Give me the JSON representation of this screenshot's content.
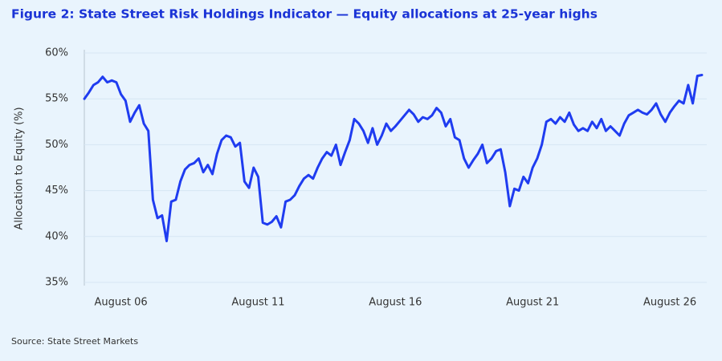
{
  "chart_data": {
    "type": "line",
    "title": "Figure 2: State Street Risk Holdings Indicator — Equity allocations at 25-year highs",
    "ylabel": "Allocation to Equity (%)",
    "source": "Source: State Street Markets",
    "categories": [
      null,
      null,
      null,
      null,
      null,
      null,
      null,
      null,
      "August 06",
      null,
      null,
      null,
      null,
      null,
      null,
      null,
      null,
      null,
      null,
      null,
      null,
      null,
      null,
      null,
      null,
      null,
      null,
      null,
      null,
      null,
      null,
      null,
      null,
      null,
      null,
      null,
      null,
      null,
      "August 11",
      null,
      null,
      null,
      null,
      null,
      null,
      null,
      null,
      null,
      null,
      null,
      null,
      null,
      null,
      null,
      null,
      null,
      null,
      null,
      null,
      null,
      null,
      null,
      null,
      null,
      null,
      null,
      null,
      null,
      "August 16",
      null,
      null,
      null,
      null,
      null,
      null,
      null,
      null,
      null,
      null,
      null,
      null,
      null,
      null,
      null,
      null,
      null,
      null,
      null,
      null,
      null,
      null,
      null,
      null,
      null,
      null,
      null,
      null,
      null,
      "August 21",
      null,
      null,
      null,
      null,
      null,
      null,
      null,
      null,
      null,
      null,
      null,
      null,
      null,
      null,
      null,
      null,
      null,
      null,
      null,
      null,
      null,
      null,
      null,
      null,
      null,
      null,
      null,
      null,
      null,
      "August 26",
      null,
      null,
      null,
      null,
      null,
      null,
      null
    ],
    "values": [
      55.0,
      55.7,
      56.5,
      56.8,
      57.4,
      56.8,
      57.0,
      56.8,
      55.5,
      54.8,
      52.5,
      53.5,
      54.3,
      52.3,
      51.5,
      44.0,
      42.0,
      42.3,
      39.5,
      43.8,
      44.0,
      46.0,
      47.3,
      47.8,
      48.0,
      48.5,
      47.0,
      47.8,
      46.8,
      49.0,
      50.5,
      51.0,
      50.8,
      49.8,
      50.2,
      46.0,
      45.3,
      47.5,
      46.5,
      41.5,
      41.3,
      41.6,
      42.2,
      41.0,
      43.8,
      44.0,
      44.5,
      45.5,
      46.3,
      46.7,
      46.3,
      47.5,
      48.5,
      49.2,
      48.8,
      50.0,
      47.8,
      49.2,
      50.5,
      52.8,
      52.3,
      51.5,
      50.2,
      51.8,
      50.0,
      51.0,
      52.3,
      51.5,
      52.0,
      52.6,
      53.2,
      53.8,
      53.3,
      52.5,
      53.0,
      52.8,
      53.2,
      54.0,
      53.5,
      52.0,
      52.8,
      50.8,
      50.5,
      48.5,
      47.5,
      48.3,
      49.0,
      50.0,
      48.0,
      48.5,
      49.3,
      49.5,
      47.0,
      43.3,
      45.2,
      45.0,
      46.5,
      45.8,
      47.5,
      48.5,
      50.0,
      52.5,
      52.8,
      52.3,
      53.0,
      52.5,
      53.5,
      52.2,
      51.5,
      51.8,
      51.5,
      52.5,
      51.8,
      52.8,
      51.5,
      52.0,
      51.5,
      51.0,
      52.3,
      53.2,
      53.5,
      53.8,
      53.5,
      53.3,
      53.8,
      54.5,
      53.3,
      52.5,
      53.5,
      54.2,
      54.8,
      54.5,
      56.5,
      54.5,
      57.5,
      57.6
    ],
    "color": "#1f3cf0",
    "ylim": [
      35,
      60
    ],
    "yticks": [
      {
        "value": 35,
        "label": "35%"
      },
      {
        "value": 40,
        "label": "40%"
      },
      {
        "value": 45,
        "label": "45%"
      },
      {
        "value": 50,
        "label": "50%"
      },
      {
        "value": 55,
        "label": "55%"
      },
      {
        "value": 60,
        "label": "60%"
      }
    ],
    "grid": true
  }
}
